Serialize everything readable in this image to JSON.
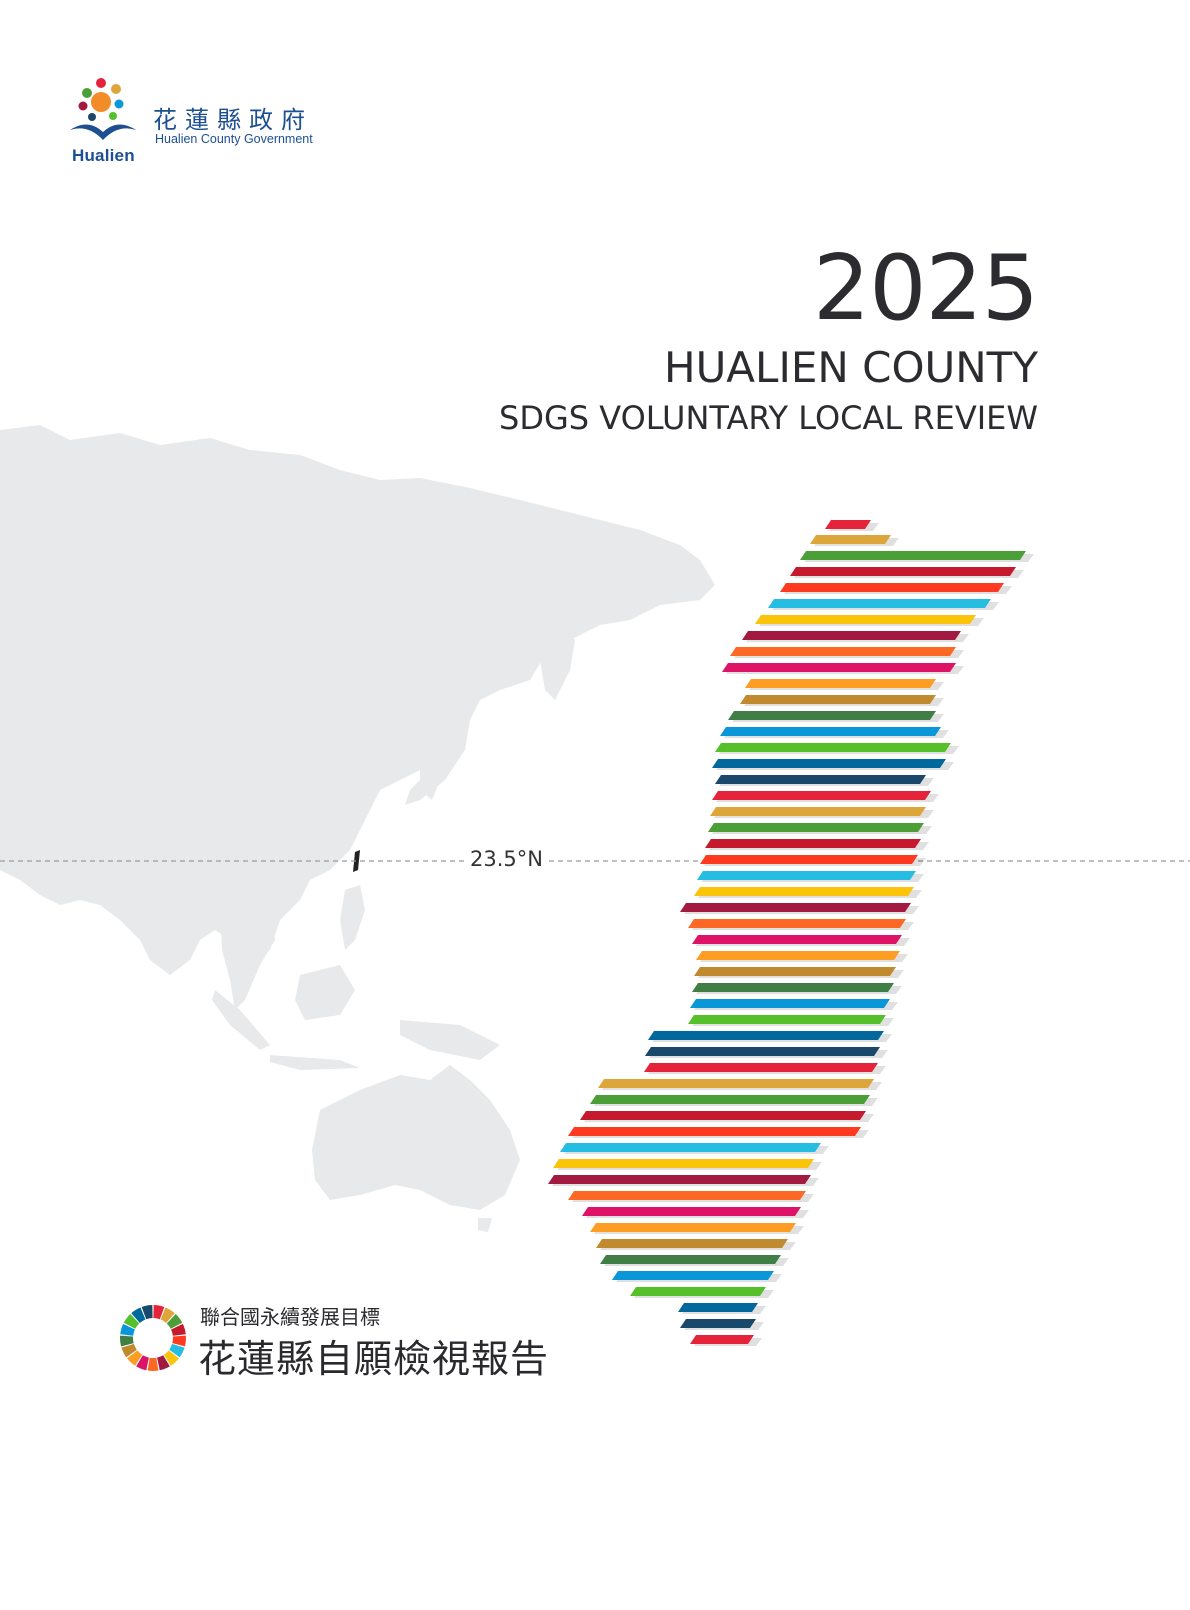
{
  "header": {
    "org_name_zh": "花蓮縣政府",
    "org_name_en": "Hualien County Government",
    "logo_text": "Hualien"
  },
  "title": {
    "year": "2025",
    "county": "HUALIEN COUNTY",
    "subtitle": "SDGS VOLUNTARY LOCAL REVIEW"
  },
  "map": {
    "latitude_label": "23.5°N"
  },
  "footer": {
    "line1": "聯合國永續發展目標",
    "line2": "花蓮縣自願檢視報告"
  },
  "colors": {
    "sdg": [
      "#E5243B",
      "#DDA63A",
      "#4C9F38",
      "#C5192D",
      "#FF3A21",
      "#26BDE2",
      "#FCC30B",
      "#A21942",
      "#FD6925",
      "#DD1367",
      "#FD9D24",
      "#BF8B2E",
      "#3F7E44",
      "#0A97D9",
      "#56C02B",
      "#00689D",
      "#19486A"
    ],
    "map_land": "#e8e9ea",
    "title_text": "#2b2b30",
    "brand_blue": "#1d4f91"
  }
}
